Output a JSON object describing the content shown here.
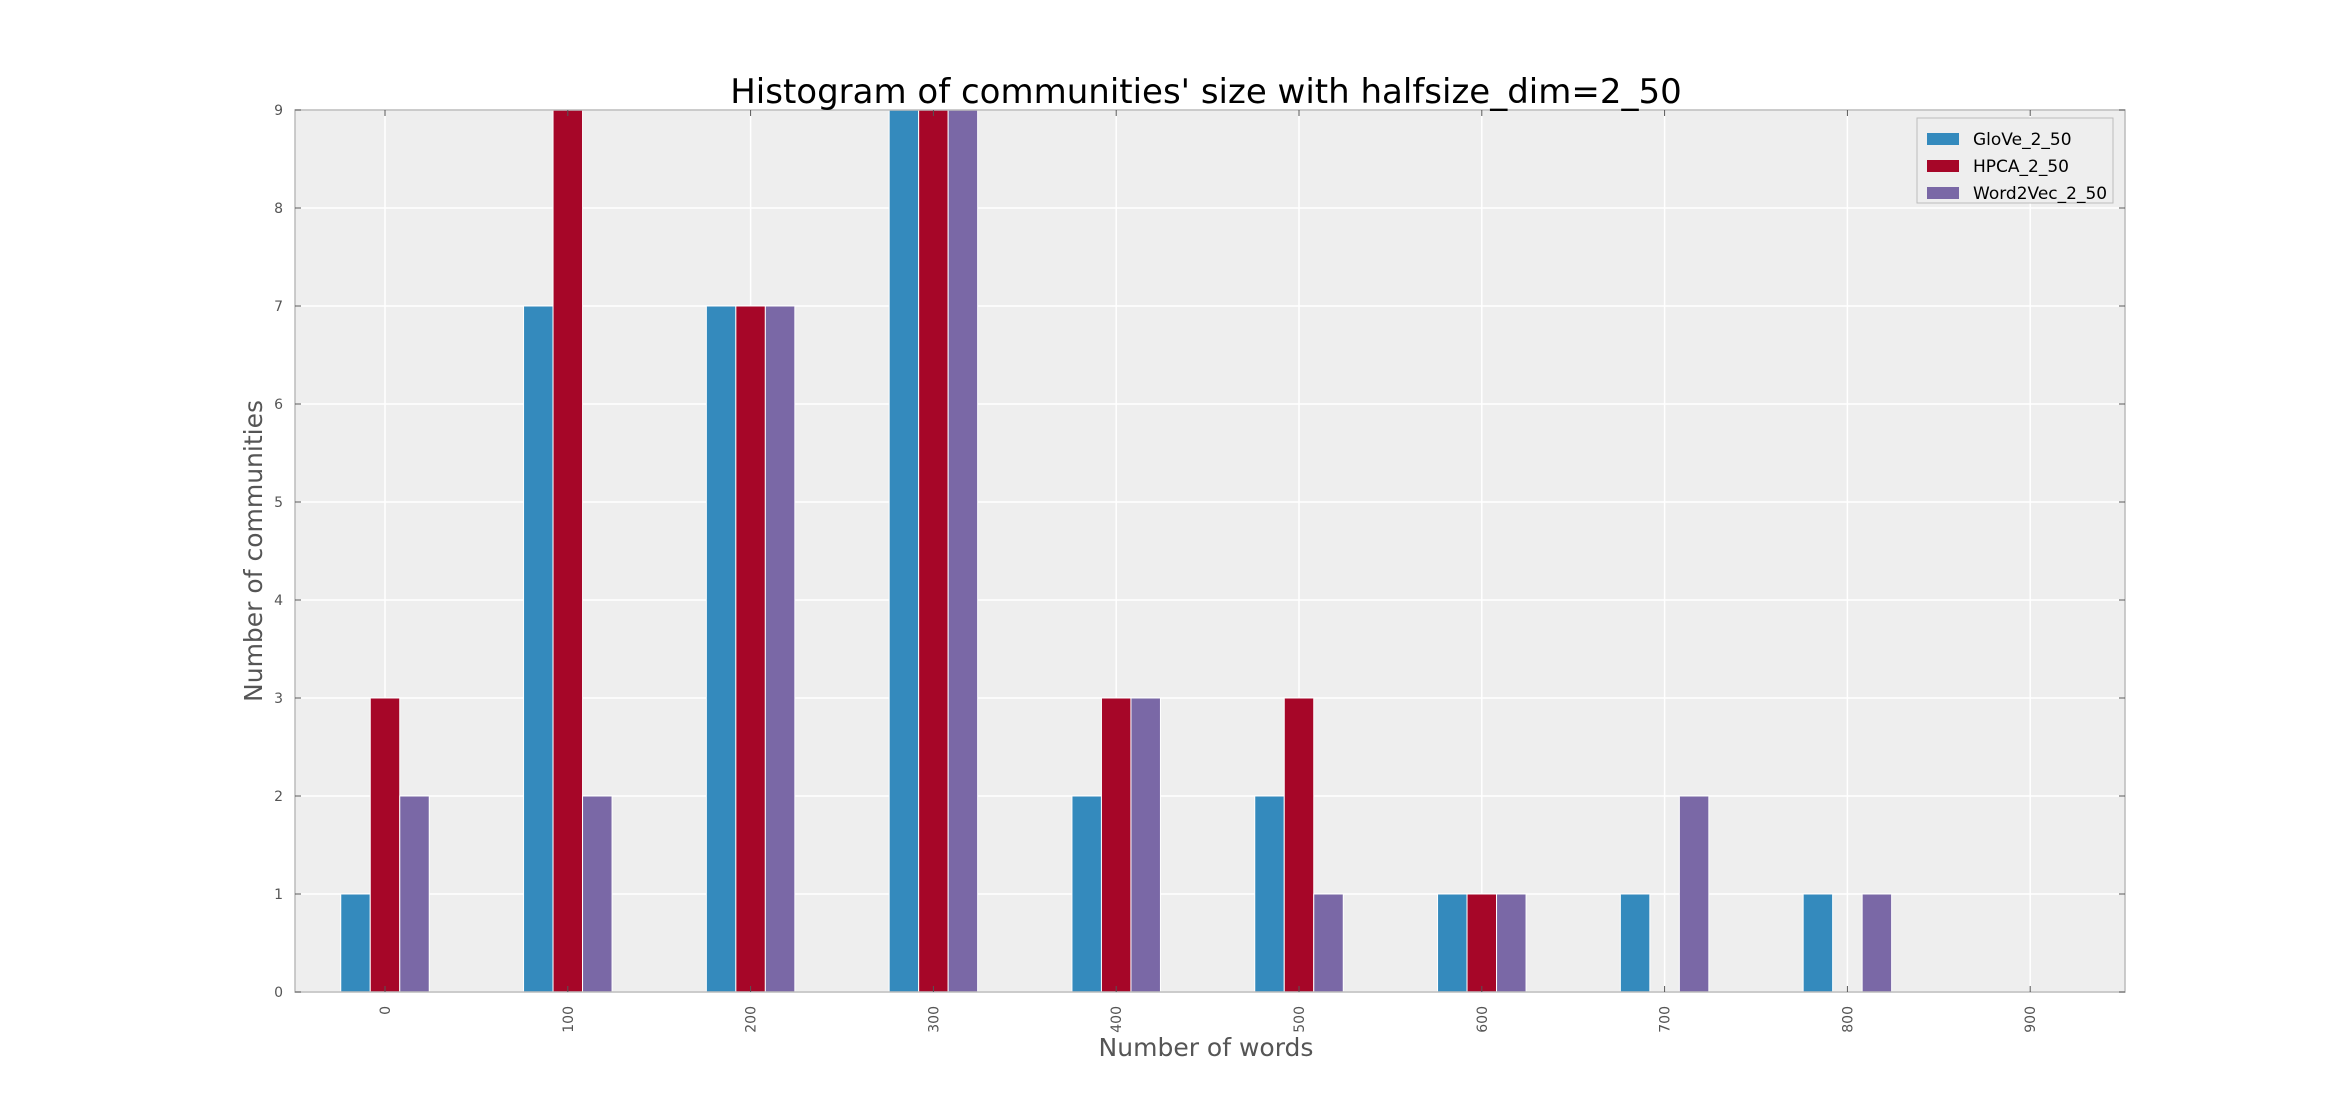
{
  "chart_data": {
    "type": "bar",
    "title": "Histogram of communities' size with halfsize_dim=2_50",
    "xlabel": "Number of words",
    "ylabel": "Number of communities",
    "categories": [
      "0",
      "100",
      "200",
      "300",
      "400",
      "500",
      "600",
      "700",
      "800",
      "900"
    ],
    "series": [
      {
        "name": "GloVe_2_50",
        "color": "#348ABD",
        "values": [
          1,
          7,
          7,
          9,
          2,
          2,
          1,
          1,
          1,
          0
        ]
      },
      {
        "name": "HPCA_2_50",
        "color": "#A60628",
        "values": [
          3,
          9,
          7,
          9,
          3,
          3,
          1,
          0,
          0,
          0
        ]
      },
      {
        "name": "Word2Vec_2_50",
        "color": "#7A68A6",
        "values": [
          2,
          2,
          7,
          9,
          3,
          1,
          1,
          2,
          1,
          0
        ]
      }
    ],
    "ylim": [
      0,
      9
    ],
    "yticks": [
      "0",
      "1",
      "2",
      "3",
      "4",
      "5",
      "6",
      "7",
      "8",
      "9"
    ],
    "grid": true,
    "legend_position": "top-right",
    "plot_background": "#EEEEEE"
  }
}
